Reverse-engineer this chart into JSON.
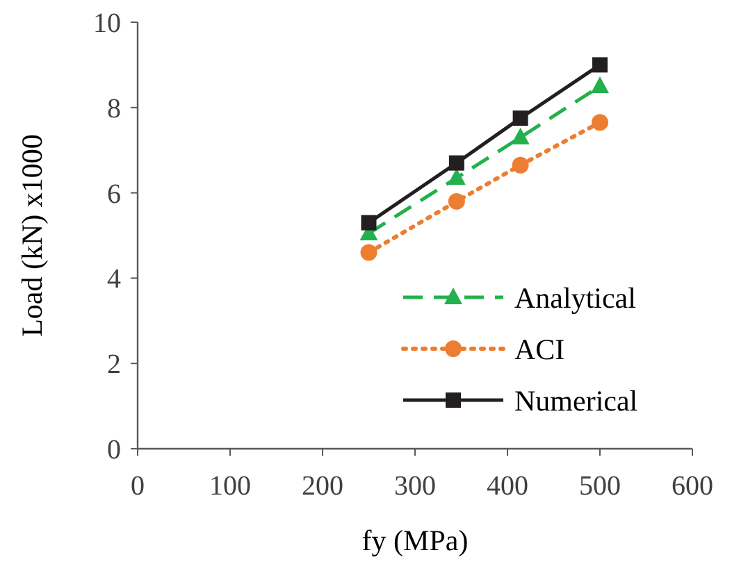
{
  "chart_data": {
    "type": "line",
    "xlabel": "fy (MPa)",
    "ylabel": "Load (kN) x1000",
    "x": [
      250,
      345,
      414,
      500
    ],
    "xlim": [
      0,
      600
    ],
    "xticks": [
      0,
      100,
      200,
      300,
      400,
      500,
      600
    ],
    "ylim": [
      0,
      10
    ],
    "yticks": [
      0,
      2,
      4,
      6,
      8,
      10
    ],
    "grid": false,
    "legend": "bottom right",
    "series": [
      {
        "name": "Analytical",
        "color": "#22b14c",
        "values": [
          5.05,
          6.35,
          7.3,
          8.5
        ],
        "marker": "triangle",
        "line_style": "dashed"
      },
      {
        "name": "ACI",
        "color": "#ed7d31",
        "values": [
          4.6,
          5.8,
          6.65,
          7.65
        ],
        "marker": "circle",
        "line_style": "dotted"
      },
      {
        "name": "Numerical",
        "color": "#231f20",
        "values": [
          5.3,
          6.7,
          7.75,
          9.0
        ],
        "marker": "square",
        "line_style": "solid"
      }
    ]
  }
}
